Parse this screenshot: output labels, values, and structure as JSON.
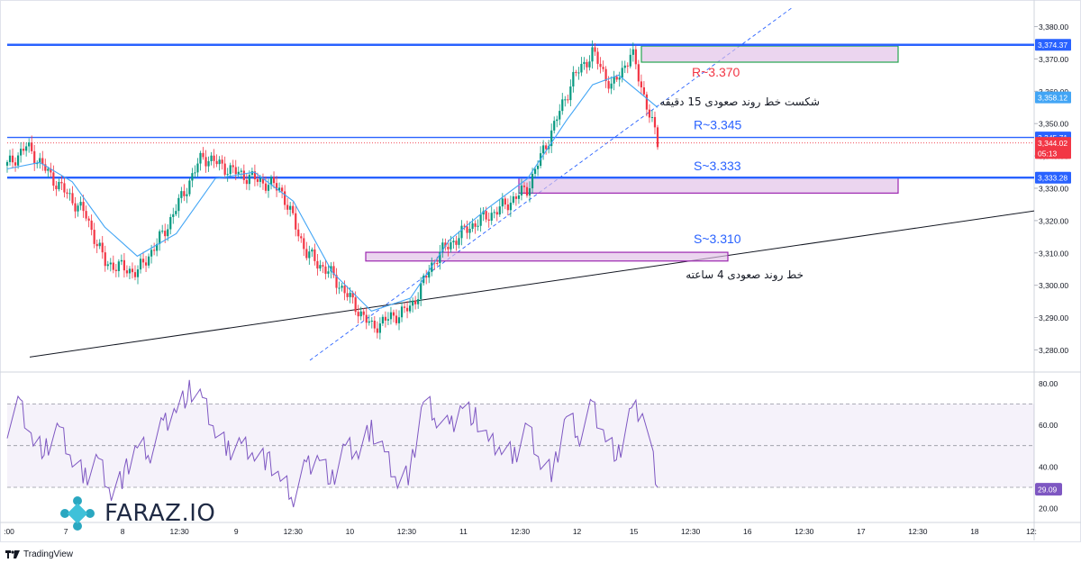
{
  "chart_data": [
    {
      "type": "candlestick",
      "title": "",
      "ylim": [
        3274,
        3386
      ],
      "y_ticks": [
        "3,380.00",
        "3,370.00",
        "3,360.00",
        "3,350.00",
        "3,340.00",
        "3,330.00",
        "3,320.00",
        "3,310.00",
        "3,300.00",
        "3,290.00",
        "3,280.00"
      ],
      "y_tick_values": [
        3380,
        3370,
        3360,
        3350,
        3340,
        3330,
        3320,
        3310,
        3300,
        3290,
        3280
      ],
      "x_labels": [
        ":00",
        "7",
        "8",
        "12:30",
        "9",
        "12:30",
        "10",
        "12:30",
        "11",
        "12:30",
        "12",
        "15",
        "12:30",
        "16",
        "12:30",
        "17",
        "12:30",
        "18",
        "12:"
      ],
      "price_tags": [
        {
          "text": "3,374.37",
          "value": 3374.37,
          "color": "#2962ff"
        },
        {
          "text": "3,358.12",
          "value": 3358.12,
          "color": "#42a5f5"
        },
        {
          "text": "3,345.71",
          "value": 3345.71,
          "color": "#2962ff"
        },
        {
          "text": "3,344.02",
          "value": 3344.02,
          "color": "#f23645"
        },
        {
          "text": "05:13",
          "value": 3340.9,
          "color": "#f23645"
        },
        {
          "text": "3,333.28",
          "value": 3333.28,
          "color": "#2962ff"
        }
      ],
      "horizontal_levels": [
        3374.37,
        3345.71,
        3333.28
      ],
      "current_price": 3344.02,
      "close_path_x": [
        0,
        0.03,
        0.07,
        0.12,
        0.15,
        0.2,
        0.24,
        0.3,
        0.35,
        0.42,
        0.46,
        0.5,
        0.53,
        0.56,
        0.62,
        0.66,
        0.71,
        0.76,
        0.8,
        0.84,
        0.87,
        0.9,
        0.93,
        0.96,
        1
      ],
      "close_path_y": [
        3337,
        3343,
        3333,
        3322,
        3307,
        3304,
        3316,
        3340,
        3335,
        3330,
        3310,
        3303,
        3295,
        3287,
        3293,
        3309,
        3318,
        3324,
        3330,
        3349,
        3364,
        3372,
        3361,
        3372,
        3344
      ],
      "ema_path_x": [
        0,
        0.05,
        0.1,
        0.15,
        0.2,
        0.26,
        0.32,
        0.38,
        0.44,
        0.5,
        0.56,
        0.62,
        0.68,
        0.74,
        0.8,
        0.86,
        0.9,
        0.94,
        1
      ],
      "ema_path_y": [
        3336,
        3338,
        3332,
        3318,
        3309,
        3316,
        3333,
        3335,
        3326,
        3304,
        3292,
        3296,
        3314,
        3324,
        3333,
        3351,
        3362,
        3365,
        3355
      ],
      "zones": [
        {
          "label": "R~3.370",
          "from": 3369,
          "to": 3374,
          "label_color": "#f23645"
        },
        {
          "label": "S~3.333",
          "from": 3328.5,
          "to": 3333.3,
          "label_color": "#2962ff"
        },
        {
          "label": "S~3.310",
          "from": 3307.5,
          "to": 3310.2,
          "label_color": "#2962ff"
        }
      ],
      "level_labels": [
        {
          "label": "R~3.345",
          "value": 3345.71,
          "color": "#2962ff"
        }
      ],
      "annotations": [
        {
          "text": "شکست خط روند صعودی 15 دقیقه",
          "kind": "dashed-trendline"
        },
        {
          "text": "خط روند صعودی 4 ساعته",
          "kind": "solid-trendline"
        }
      ]
    },
    {
      "type": "line",
      "title": "",
      "ylim": [
        14,
        84
      ],
      "y_ticks": [
        "80.00",
        "60.00",
        "40.00",
        "20.00"
      ],
      "y_tick_values": [
        80,
        60,
        40,
        20
      ],
      "levels": [
        70,
        50,
        30
      ],
      "current_value": 29.09,
      "value_label": "29.09",
      "series_color": "#7e57c2",
      "path_x": [
        0,
        0.02,
        0.04,
        0.06,
        0.08,
        0.1,
        0.12,
        0.14,
        0.16,
        0.18,
        0.2,
        0.22,
        0.24,
        0.26,
        0.28,
        0.3,
        0.32,
        0.34,
        0.36,
        0.38,
        0.4,
        0.42,
        0.44,
        0.46,
        0.48,
        0.5,
        0.52,
        0.54,
        0.56,
        0.58,
        0.6,
        0.62,
        0.64,
        0.66,
        0.68,
        0.7,
        0.72,
        0.74,
        0.76,
        0.78,
        0.8,
        0.82,
        0.84,
        0.86,
        0.88,
        0.9,
        0.92,
        0.94,
        0.96,
        0.98,
        1
      ],
      "path_y": [
        59,
        70,
        52,
        48,
        58,
        43,
        35,
        44,
        28,
        36,
        50,
        47,
        60,
        68,
        76,
        72,
        57,
        48,
        51,
        47,
        43,
        34,
        26,
        40,
        45,
        33,
        49,
        47,
        58,
        47,
        34,
        37,
        72,
        64,
        58,
        70,
        63,
        51,
        49,
        45,
        60,
        43,
        37,
        65,
        55,
        69,
        54,
        45,
        67,
        65,
        30
      ]
    }
  ],
  "brand": {
    "name": "FARAZ.IO"
  },
  "tv_credit": {
    "text": "TradingView"
  }
}
